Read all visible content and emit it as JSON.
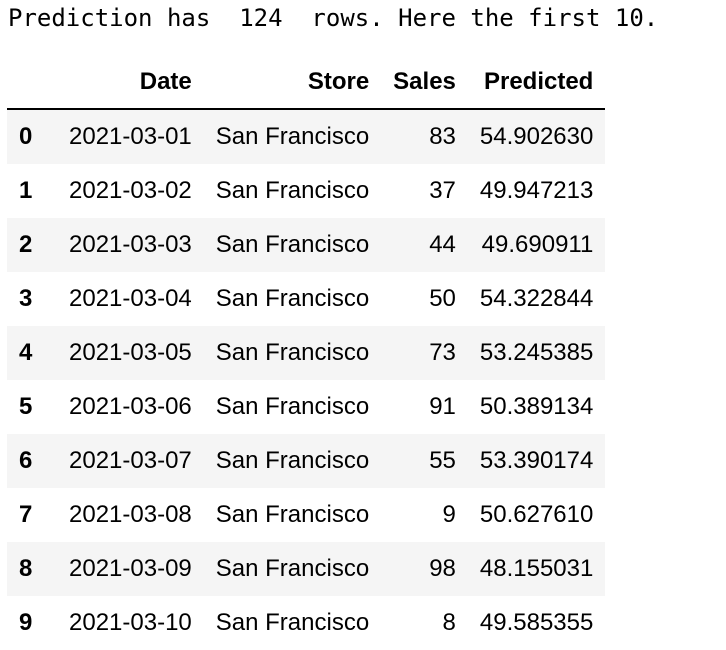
{
  "output": {
    "message": "Prediction has  124  rows. Here the first 10."
  },
  "table": {
    "columns": [
      "",
      "Date",
      "Store",
      "Sales",
      "Predicted"
    ],
    "rows": [
      {
        "index": "0",
        "date": "2021-03-01",
        "store": "San Francisco",
        "sales": "83",
        "predicted": "54.902630"
      },
      {
        "index": "1",
        "date": "2021-03-02",
        "store": "San Francisco",
        "sales": "37",
        "predicted": "49.947213"
      },
      {
        "index": "2",
        "date": "2021-03-03",
        "store": "San Francisco",
        "sales": "44",
        "predicted": "49.690911"
      },
      {
        "index": "3",
        "date": "2021-03-04",
        "store": "San Francisco",
        "sales": "50",
        "predicted": "54.322844"
      },
      {
        "index": "4",
        "date": "2021-03-05",
        "store": "San Francisco",
        "sales": "73",
        "predicted": "53.245385"
      },
      {
        "index": "5",
        "date": "2021-03-06",
        "store": "San Francisco",
        "sales": "91",
        "predicted": "50.389134"
      },
      {
        "index": "6",
        "date": "2021-03-07",
        "store": "San Francisco",
        "sales": "55",
        "predicted": "53.390174"
      },
      {
        "index": "7",
        "date": "2021-03-08",
        "store": "San Francisco",
        "sales": "9",
        "predicted": "50.627610"
      },
      {
        "index": "8",
        "date": "2021-03-09",
        "store": "San Francisco",
        "sales": "98",
        "predicted": "48.155031"
      },
      {
        "index": "9",
        "date": "2021-03-10",
        "store": "San Francisco",
        "sales": "8",
        "predicted": "49.585355"
      }
    ]
  }
}
